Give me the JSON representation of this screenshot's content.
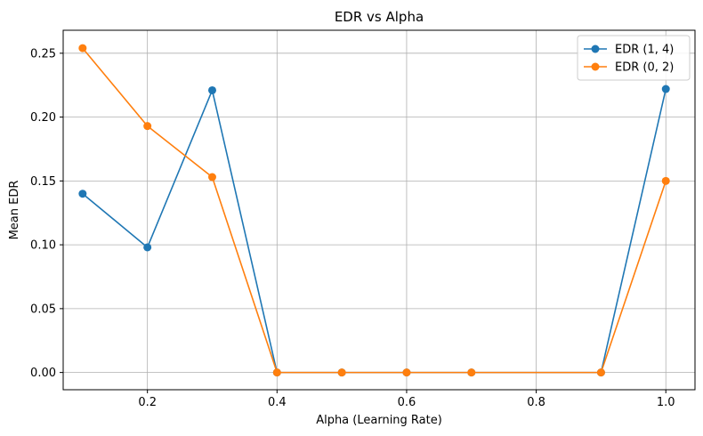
{
  "chart_data": {
    "type": "line",
    "title": "EDR vs Alpha",
    "xlabel": "Alpha (Learning Rate)",
    "ylabel": "Mean EDR",
    "xlim": [
      0.07,
      1.045
    ],
    "ylim": [
      -0.0135,
      0.268
    ],
    "x_ticks": [
      0.2,
      0.4,
      0.6,
      0.8,
      1.0
    ],
    "x_tick_labels": [
      "0.2",
      "0.4",
      "0.6",
      "0.8",
      "1.0"
    ],
    "y_ticks": [
      0.0,
      0.05,
      0.1,
      0.15,
      0.2,
      0.25
    ],
    "y_tick_labels": [
      "0.00",
      "0.05",
      "0.10",
      "0.15",
      "0.20",
      "0.25"
    ],
    "grid": true,
    "legend_position": "top-right",
    "x": [
      0.1,
      0.2,
      0.3,
      0.4,
      0.5,
      0.6,
      0.7,
      0.9,
      1.0
    ],
    "series": [
      {
        "name": "EDR (1, 4)",
        "color": "#1f77b4",
        "marker": "circle",
        "values": [
          0.14,
          0.098,
          0.221,
          0.0,
          0.0,
          0.0,
          0.0,
          0.0,
          0.222
        ]
      },
      {
        "name": "EDR (0, 2)",
        "color": "#ff7f0e",
        "marker": "circle",
        "values": [
          0.254,
          0.193,
          0.153,
          0.0,
          0.0,
          0.0,
          0.0,
          0.0,
          0.15
        ]
      }
    ]
  }
}
